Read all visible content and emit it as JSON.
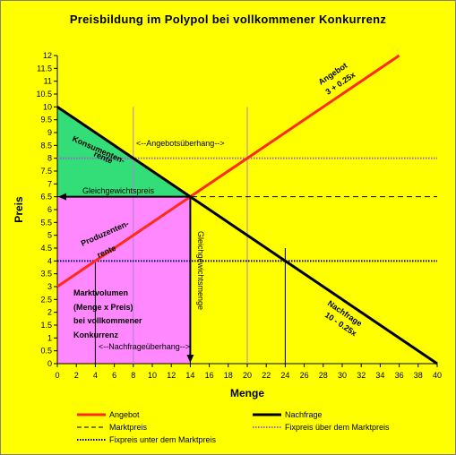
{
  "chart_data": {
    "type": "line",
    "title": "Preisbildung im Polypol bei vollkommener Konkurrenz",
    "xlabel": "Menge",
    "ylabel": "Preis",
    "xlim": [
      0,
      40
    ],
    "ylim": [
      0,
      12
    ],
    "x_ticks": [
      0,
      2,
      4,
      6,
      8,
      10,
      12,
      14,
      16,
      18,
      20,
      22,
      24,
      26,
      28,
      30,
      32,
      34,
      36,
      38,
      40
    ],
    "y_ticks": [
      "0",
      "0.5",
      "1",
      "1.5",
      "2",
      "2.5",
      "3",
      "3.5",
      "4",
      "4.5",
      "5",
      "5.5",
      "6",
      "6.5",
      "7",
      "7.5",
      "8",
      "8.5",
      "9",
      "9.5",
      "10",
      "10.5",
      "11",
      "11.5",
      "12"
    ],
    "series": [
      {
        "name": "Angebot",
        "x": [
          0,
          36
        ],
        "y": [
          3,
          12
        ],
        "color": "#ff2a1a"
      },
      {
        "name": "Nachfrage",
        "x": [
          0,
          40
        ],
        "y": [
          10,
          0
        ],
        "color": "#000000"
      }
    ],
    "reference_lines": [
      {
        "name": "Marktpreis",
        "y": 6.5,
        "style": "dashed",
        "color": "#000000"
      },
      {
        "name": "Fixpreis über dem Marktpreis",
        "y": 8,
        "style": "dotted",
        "color": "#9966cc"
      },
      {
        "name": "Fixpreis unter dem Marktpreis",
        "y": 4,
        "style": "dotted",
        "color": "#000080"
      }
    ],
    "vertical_lines": [
      {
        "x": 4,
        "y_to": 4,
        "color": "#000000"
      },
      {
        "x": 8,
        "y_to": 10,
        "color": "#b080d0"
      },
      {
        "x": 14,
        "y_to": 6.5,
        "color": "#000000"
      },
      {
        "x": 20,
        "y_to": 10,
        "color": "#b080d0"
      },
      {
        "x": 24,
        "y_to": 4.5,
        "color": "#000000"
      }
    ],
    "equilibrium": {
      "x": 14,
      "y": 6.5
    },
    "areas": [
      {
        "name": "Konsumentenrente",
        "polygon": [
          [
            0,
            10
          ],
          [
            0,
            6.5
          ],
          [
            14,
            6.5
          ]
        ],
        "color": "#33dd77"
      },
      {
        "name": "Produzentenrente",
        "polygon": [
          [
            0,
            6.5
          ],
          [
            0,
            3
          ],
          [
            14,
            6.5
          ]
        ],
        "color": "#ffccff"
      },
      {
        "name": "Marktvolumen",
        "polygon": [
          [
            0,
            0
          ],
          [
            0,
            6.5
          ],
          [
            14,
            6.5
          ],
          [
            14,
            0
          ]
        ],
        "color": "#ff88ff"
      }
    ],
    "annotations": {
      "angebot_label_1": "Angebot",
      "angebot_label_2": "3 + 0.25x",
      "nachfrage_label_1": "Nachfrage",
      "nachfrage_label_2": "10 - 0.25x",
      "konsumenten_1": "Konsumenten-",
      "konsumenten_2": "rente",
      "produzenten_1": "Produzenten-",
      "produzenten_2": "rente",
      "gleichgewichtspreis": "Gleichgewichtspreis",
      "gleichgewichtsmenge": "Gleichgewichtsmenge",
      "angebotsueberhang": "<--Angebotsüberhang-->",
      "nachfrageueberhang": "<--Nachfrageüberhang-->",
      "marktvolumen_1": "Marktvolumen",
      "marktvolumen_2": "(Menge x Preis)",
      "marktvolumen_3": "bei vollkommener",
      "marktvolumen_4": "Konkurrenz"
    },
    "legend": [
      {
        "label": "Angebot",
        "style": "solid-red"
      },
      {
        "label": "Nachfrage",
        "style": "solid-black"
      },
      {
        "label": "Marktpreis",
        "style": "dashed-black"
      },
      {
        "label": "Fixpreis über dem Marktpreis",
        "style": "dotted-purple"
      },
      {
        "label": "Fixpreis unter dem Marktpreis",
        "style": "dotted-navy"
      }
    ],
    "legend_position": "bottom"
  }
}
